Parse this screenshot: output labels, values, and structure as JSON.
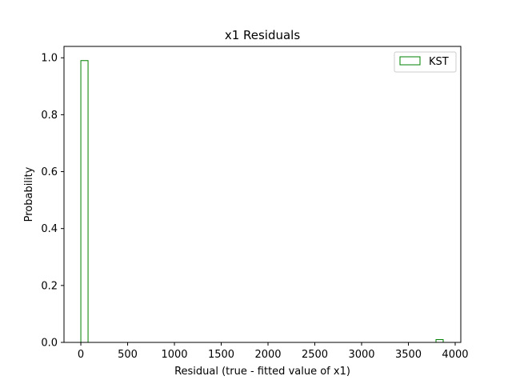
{
  "chart_data": {
    "type": "bar",
    "title": "x1 Residuals",
    "xlabel": "Residual (true - fitted value of x1)",
    "ylabel": "Probability",
    "xlim": [
      -180,
      4060
    ],
    "ylim": [
      0,
      1.04
    ],
    "xticks": [
      0,
      500,
      1000,
      1500,
      2000,
      2500,
      3000,
      3500,
      4000
    ],
    "yticks": [
      0.0,
      0.2,
      0.4,
      0.6,
      0.8,
      1.0
    ],
    "xtick_labels": [
      "0",
      "500",
      "1000",
      "1500",
      "2000",
      "2500",
      "3000",
      "3500",
      "4000"
    ],
    "ytick_labels": [
      "0.0",
      "0.2",
      "0.4",
      "0.6",
      "0.8",
      "1.0"
    ],
    "histtype": "step",
    "grid": false,
    "legend_position": "top-right",
    "series": [
      {
        "name": "KST",
        "color": "#008000",
        "bins": [
          {
            "x0": 0,
            "x1": 77,
            "value": 0.99
          },
          {
            "x0": 3795,
            "x1": 3872,
            "value": 0.01
          }
        ]
      }
    ]
  }
}
